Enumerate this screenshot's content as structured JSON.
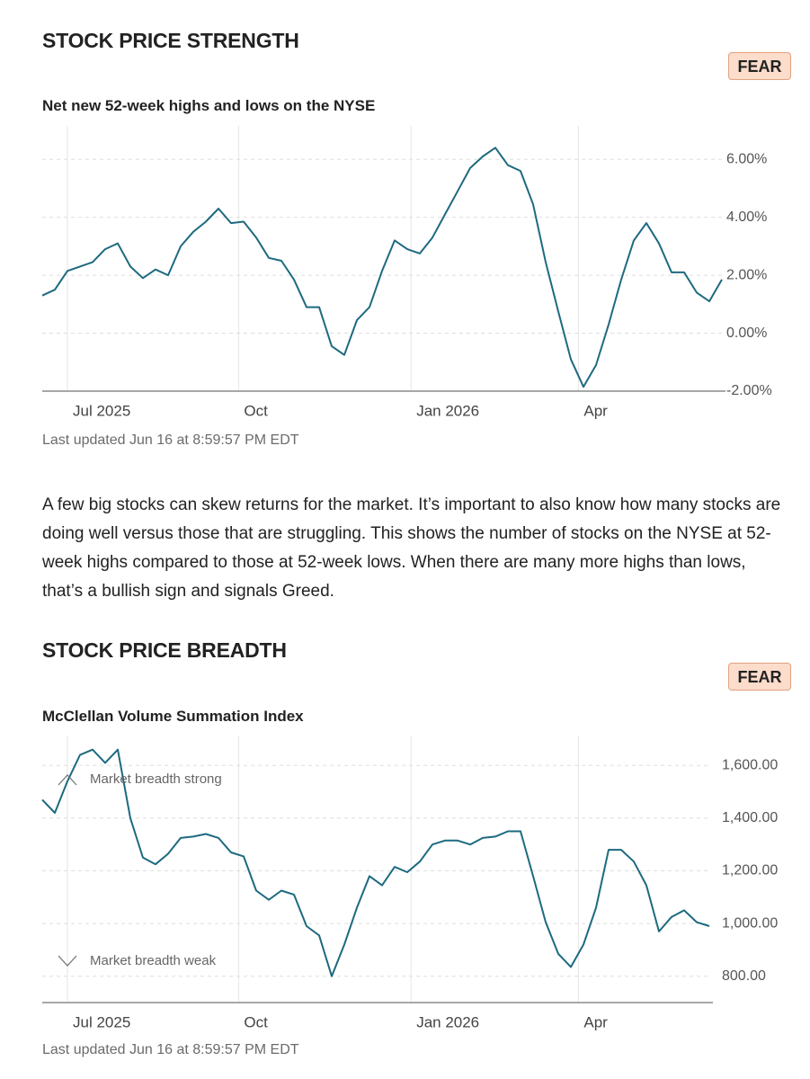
{
  "sections": [
    {
      "heading": "STOCK PRICE STRENGTH",
      "badge": "FEAR",
      "updated": "Last updated Jun 16 at 8:59:57 PM EDT",
      "description": "A few big stocks can skew returns for the market. It’s important to also know how many stocks are doing well versus those that are struggling. This shows the number of stocks on the NYSE at 52-week highs compared to those at 52-week lows. When there are many more highs than lows, that’s a bullish sign and signals Greed."
    },
    {
      "heading": "STOCK PRICE BREADTH",
      "badge": "FEAR",
      "updated": "Last updated Jun 16 at 8:59:57 PM EDT"
    }
  ],
  "chart_data": [
    {
      "type": "line",
      "title": "Net new 52-week highs and lows on the NYSE",
      "color": "#1d6a80",
      "grid": true,
      "values": [
        1.3,
        1.5,
        2.15,
        2.3,
        2.45,
        2.9,
        3.1,
        2.3,
        1.9,
        2.2,
        2.0,
        3.0,
        3.5,
        3.85,
        4.3,
        3.8,
        3.85,
        3.3,
        2.6,
        2.5,
        1.85,
        0.9,
        0.9,
        -0.45,
        -0.75,
        0.45,
        0.9,
        2.15,
        3.2,
        2.9,
        2.75,
        3.3,
        4.1,
        4.9,
        5.7,
        6.1,
        6.4,
        5.8,
        5.6,
        4.45,
        2.45,
        0.75,
        -0.9,
        -1.85,
        -1.1,
        0.3,
        1.85,
        3.2,
        3.8,
        3.1,
        2.1,
        2.1,
        1.4,
        1.1,
        1.85
      ],
      "xlim": [
        0,
        54
      ],
      "xticks": [
        {
          "value": 2,
          "label": "Jul 2025"
        },
        {
          "value": 15.6,
          "label": "Oct"
        },
        {
          "value": 29.3,
          "label": "Jan 2026"
        },
        {
          "value": 42.6,
          "label": "Apr"
        }
      ],
      "ylim": [
        -2,
        7
      ],
      "yticks": [
        {
          "value": -2,
          "label": "-2.00%"
        },
        {
          "value": 0,
          "label": "0.00%"
        },
        {
          "value": 2,
          "label": "2.00%"
        },
        {
          "value": 4,
          "label": "4.00%"
        },
        {
          "value": 6,
          "label": "6.00%"
        }
      ]
    },
    {
      "type": "line",
      "title": "McClellan Volume Summation Index",
      "color": "#1d6a80",
      "grid": true,
      "values": [
        1470,
        1420,
        1540,
        1640,
        1660,
        1610,
        1660,
        1400,
        1250,
        1225,
        1265,
        1325,
        1330,
        1340,
        1325,
        1270,
        1255,
        1125,
        1090,
        1125,
        1110,
        990,
        955,
        800,
        920,
        1060,
        1180,
        1145,
        1215,
        1195,
        1235,
        1300,
        1315,
        1315,
        1300,
        1325,
        1330,
        1350,
        1350,
        1180,
        1005,
        885,
        835,
        920,
        1060,
        1280,
        1280,
        1235,
        1145,
        970,
        1025,
        1050,
        1005,
        990
      ],
      "xlim": [
        0,
        53
      ],
      "xticks": [
        {
          "value": 2,
          "label": "Jul 2025"
        },
        {
          "value": 15.6,
          "label": "Oct"
        },
        {
          "value": 29.3,
          "label": "Jan 2026"
        },
        {
          "value": 42.6,
          "label": "Apr"
        }
      ],
      "ylim": [
        700,
        1700
      ],
      "yticks": [
        {
          "value": 800,
          "label": "800.00"
        },
        {
          "value": 1000,
          "label": "1,000.00"
        },
        {
          "value": 1200,
          "label": "1,200.00"
        },
        {
          "value": 1400,
          "label": "1,400.00"
        },
        {
          "value": 1600,
          "label": "1,600.00"
        }
      ],
      "annotations": [
        "Market breadth strong",
        "Market breadth weak"
      ]
    }
  ]
}
